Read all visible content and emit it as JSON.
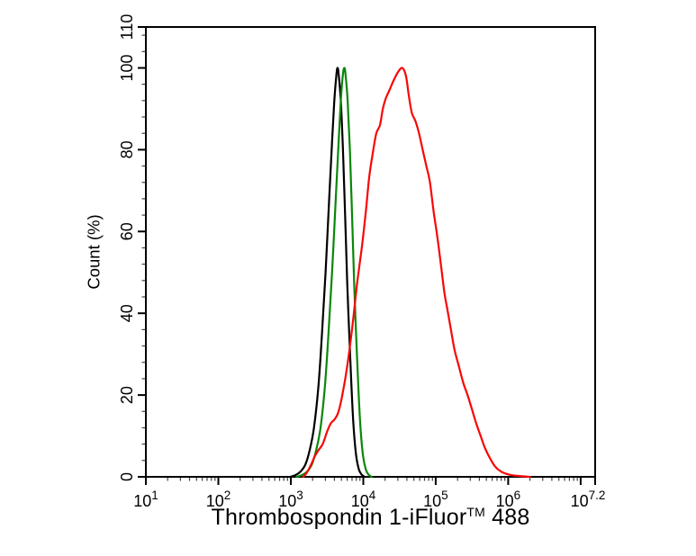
{
  "figure": {
    "title_pre": "Thrombospondin 1-iFluor",
    "title_sup": "TM",
    "title_post": " 488"
  },
  "chart_data": {
    "type": "line",
    "subtype": "flow-cytometry-histogram-overlay",
    "title": "Thrombospondin 1-iFluor™ 488",
    "xlabel": "Thrombospondin 1-iFluor™ 488",
    "ylabel": "Count  (%)",
    "x_scale": "log10",
    "xlim_log": [
      1,
      7.2
    ],
    "ylim": [
      0,
      110
    ],
    "grid": "off",
    "legend": "none",
    "frame": "full-box",
    "background_color": "#ffffff",
    "frame_color": "#000000",
    "tick_color": "#000000",
    "minor_tick_color": "#444444",
    "y_major_ticks": [
      0,
      20,
      40,
      60,
      80,
      100,
      110
    ],
    "y_tick_labels": [
      "0",
      "20",
      "40",
      "60",
      "80",
      "100",
      "110"
    ],
    "y_minor_step": 4,
    "x_major_ticks_log": [
      1,
      2,
      3,
      4,
      5,
      6,
      7
    ],
    "x_end_tick_log": 7.2,
    "x_tick_labels": [
      {
        "log": 1,
        "base": "10",
        "exp": "1"
      },
      {
        "log": 2,
        "base": "10",
        "exp": "2"
      },
      {
        "log": 3,
        "base": "10",
        "exp": "3"
      },
      {
        "log": 4,
        "base": "10",
        "exp": "4"
      },
      {
        "log": 5,
        "base": "10",
        "exp": "5"
      },
      {
        "log": 6,
        "base": "10",
        "exp": "6"
      },
      {
        "log": 7.2,
        "base": "10",
        "exp": "7.2"
      }
    ],
    "series": [
      {
        "name": "control-black",
        "color": "#000000",
        "peak_log10_x": 3.645,
        "peak_percent": 100,
        "points_log10x_percent": [
          [
            2.99,
            0
          ],
          [
            3.06,
            0.4
          ],
          [
            3.13,
            1.2
          ],
          [
            3.2,
            3
          ],
          [
            3.26,
            6.5
          ],
          [
            3.32,
            12
          ],
          [
            3.38,
            22
          ],
          [
            3.43,
            35
          ],
          [
            3.48,
            50
          ],
          [
            3.53,
            68
          ],
          [
            3.57,
            82
          ],
          [
            3.6,
            92
          ],
          [
            3.63,
            98.5
          ],
          [
            3.645,
            100
          ],
          [
            3.66,
            98.5
          ],
          [
            3.69,
            92
          ],
          [
            3.72,
            80
          ],
          [
            3.75,
            64
          ],
          [
            3.78,
            47
          ],
          [
            3.82,
            29
          ],
          [
            3.86,
            14
          ],
          [
            3.9,
            5.5
          ],
          [
            3.94,
            1.8
          ],
          [
            3.98,
            0.5
          ],
          [
            4.02,
            0
          ]
        ]
      },
      {
        "name": "control-green",
        "color": "#0a870a",
        "peak_log10_x": 3.74,
        "peak_percent": 100,
        "points_log10x_percent": [
          [
            3.08,
            0
          ],
          [
            3.15,
            0.4
          ],
          [
            3.22,
            1.2
          ],
          [
            3.29,
            3
          ],
          [
            3.35,
            6.5
          ],
          [
            3.41,
            12
          ],
          [
            3.47,
            22
          ],
          [
            3.52,
            35
          ],
          [
            3.57,
            50
          ],
          [
            3.62,
            68
          ],
          [
            3.66,
            82
          ],
          [
            3.69,
            92
          ],
          [
            3.72,
            98.5
          ],
          [
            3.74,
            100
          ],
          [
            3.755,
            98.5
          ],
          [
            3.785,
            92
          ],
          [
            3.815,
            80
          ],
          [
            3.845,
            64
          ],
          [
            3.875,
            47
          ],
          [
            3.915,
            29
          ],
          [
            3.955,
            14
          ],
          [
            3.995,
            5.5
          ],
          [
            4.035,
            1.8
          ],
          [
            4.075,
            0.5
          ],
          [
            4.115,
            0
          ]
        ]
      },
      {
        "name": "sample-red",
        "color": "#f90606",
        "peak_log10_x": 4.54,
        "peak_percent": 100,
        "points_log10x_percent": [
          [
            3.17,
            0
          ],
          [
            3.22,
            1
          ],
          [
            3.28,
            3
          ],
          [
            3.33,
            5
          ],
          [
            3.38,
            6.5
          ],
          [
            3.44,
            8
          ],
          [
            3.5,
            11
          ],
          [
            3.55,
            13
          ],
          [
            3.6,
            14
          ],
          [
            3.65,
            15.5
          ],
          [
            3.7,
            19
          ],
          [
            3.77,
            26
          ],
          [
            3.83,
            34
          ],
          [
            3.87,
            40
          ],
          [
            3.92,
            48
          ],
          [
            3.98,
            56
          ],
          [
            4.03,
            64
          ],
          [
            4.08,
            73
          ],
          [
            4.13,
            79
          ],
          [
            4.18,
            84
          ],
          [
            4.23,
            86
          ],
          [
            4.27,
            90
          ],
          [
            4.31,
            92.5
          ],
          [
            4.36,
            94.5
          ],
          [
            4.42,
            97
          ],
          [
            4.48,
            99
          ],
          [
            4.54,
            100
          ],
          [
            4.59,
            98
          ],
          [
            4.63,
            93
          ],
          [
            4.67,
            89
          ],
          [
            4.72,
            87
          ],
          [
            4.77,
            84
          ],
          [
            4.82,
            80
          ],
          [
            4.87,
            76
          ],
          [
            4.92,
            72
          ],
          [
            4.97,
            65
          ],
          [
            5.02,
            59
          ],
          [
            5.07,
            52
          ],
          [
            5.12,
            45
          ],
          [
            5.16,
            41
          ],
          [
            5.21,
            36
          ],
          [
            5.26,
            31
          ],
          [
            5.32,
            27
          ],
          [
            5.38,
            23
          ],
          [
            5.44,
            20
          ],
          [
            5.5,
            16.5
          ],
          [
            5.56,
            13
          ],
          [
            5.62,
            10
          ],
          [
            5.68,
            7
          ],
          [
            5.75,
            4.5
          ],
          [
            5.82,
            2.5
          ],
          [
            5.9,
            1.3
          ],
          [
            6.0,
            0.6
          ],
          [
            6.12,
            0.25
          ],
          [
            6.3,
            0
          ]
        ]
      }
    ]
  }
}
